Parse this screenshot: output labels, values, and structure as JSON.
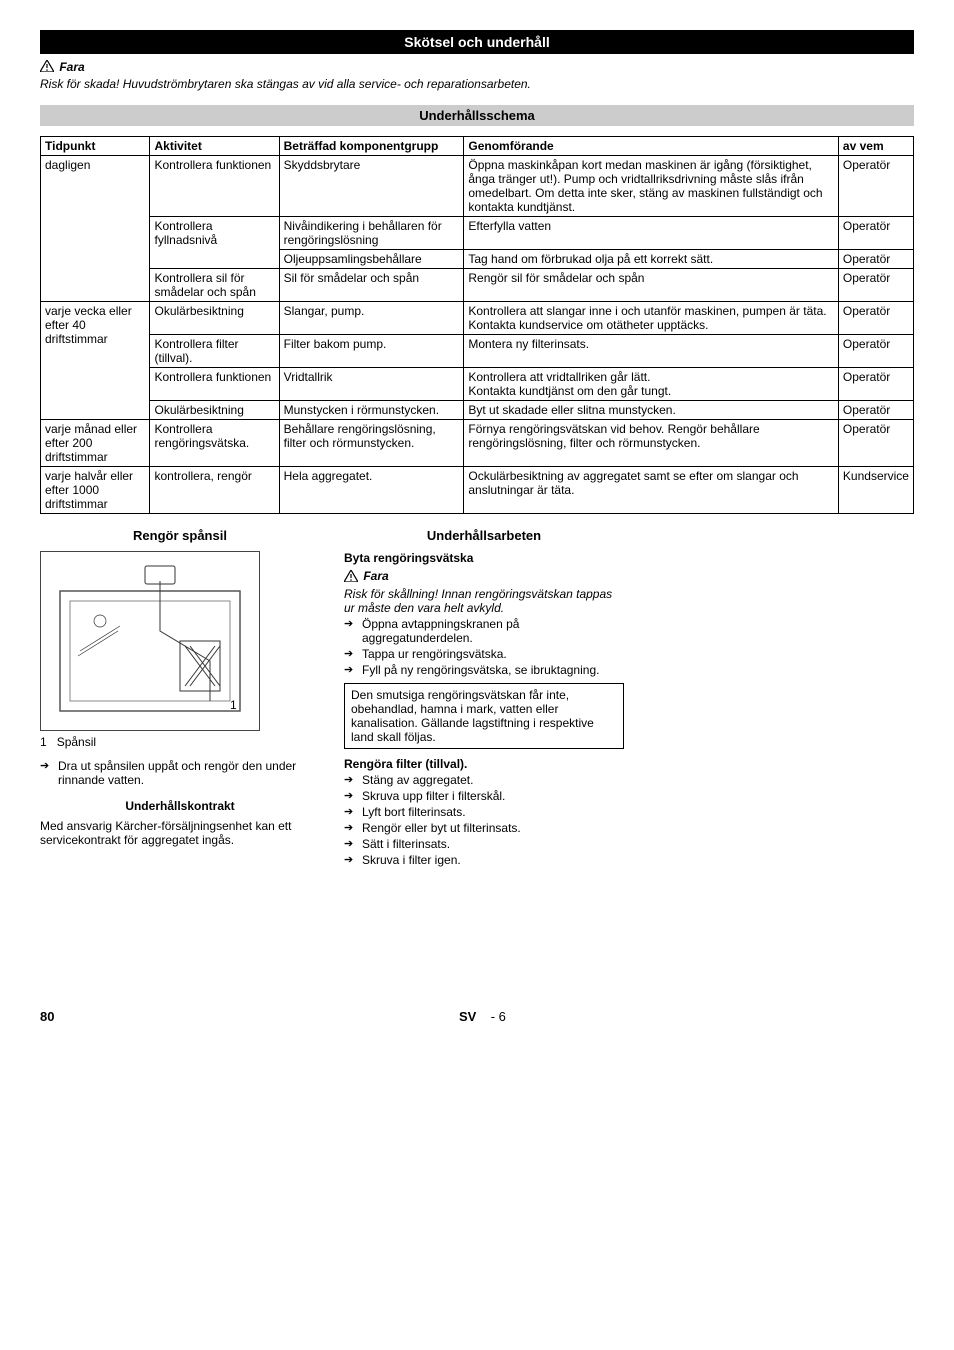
{
  "title_bar": "Skötsel och underhåll",
  "danger1": {
    "label": "Fara",
    "text": "Risk för skada! Huvudströmbrytaren ska stängas av vid alla service- och reparationsarbeten."
  },
  "schedule_header": "Underhållsschema",
  "table": {
    "headers": [
      "Tidpunkt",
      "Aktivitet",
      "Beträffad komponentgrupp",
      "Genomförande",
      "av vem"
    ],
    "rows": [
      {
        "t": "dagligen",
        "a": "Kontrollera funktionen",
        "c": "Skyddsbrytare",
        "g": "Öppna maskinkåpan kort medan maskinen är igång (försiktighet, ånga tränger ut!). Pump och vridtallriksdrivning måste slås ifrån omedelbart. Om detta inte sker, stäng av maskinen fullständigt och kontakta kundtjänst.",
        "w": "Operatör",
        "t_rs": 4,
        "a_rs": 1
      },
      {
        "t": "",
        "a": "Kontrollera fyllnadsnivå",
        "c": "Nivåindikering i behållaren för rengöringslösning",
        "g": "Efterfylla vatten",
        "w": "Operatör",
        "a_rs": 2
      },
      {
        "t": "",
        "a": "",
        "c": "Oljeuppsamlingsbehållare",
        "g": "Tag hand om förbrukad olja på ett korrekt sätt.",
        "w": "Operatör"
      },
      {
        "t": "",
        "a": "Kontrollera sil för smådelar och spån",
        "c": "Sil för smådelar och spån",
        "g": "Rengör sil för smådelar och spån",
        "w": "Operatör"
      },
      {
        "t": "varje vecka eller efter 40 driftstimmar",
        "a": "Okulärbesiktning",
        "c": "Slangar, pump.",
        "g": "Kontrollera att slangar inne i och utanför maskinen, pumpen är täta.\nKontakta kundservice om otätheter upptäcks.",
        "w": "Operatör",
        "t_rs": 4
      },
      {
        "t": "",
        "a": "Kontrollera filter (tillval).",
        "c": "Filter bakom pump.",
        "g": "Montera ny filterinsats.",
        "w": "Operatör"
      },
      {
        "t": "",
        "a": "Kontrollera funktionen",
        "c": "Vridtallrik",
        "g": "Kontrollera att vridtallriken går lätt.\nKontakta kundtjänst om den går tungt.",
        "w": "Operatör"
      },
      {
        "t": "",
        "a": "Okulärbesiktning",
        "c": "Munstycken i rörmunstycken.",
        "g": "Byt ut skadade eller slitna munstycken.",
        "w": "Operatör"
      },
      {
        "t": "varje månad eller efter 200 driftstimmar",
        "a": "Kontrollera rengöringsvätska.",
        "c": "Behållare rengöringslösning, filter och rörmunstycken.",
        "g": "Förnya rengöringsvätskan vid behov. Rengör behållare rengöringslösning, filter och rörmunstycken.",
        "w": "Operatör"
      },
      {
        "t": "varje halvår eller efter 1000 driftstimmar",
        "a": "kontrollera, rengör",
        "c": "Hela aggregatet.",
        "g": "Ockulärbesiktning av aggregatet samt se efter om slangar och anslutningar är täta.",
        "w": "Kundservice"
      }
    ]
  },
  "left_col": {
    "header": "Rengör spånsil",
    "caption_num": "1",
    "caption_text": "Spånsil",
    "bullets": [
      "Dra ut spånsilen uppåt och rengör den under rinnande vatten."
    ],
    "sub_header": "Underhållskontrakt",
    "para": "Med ansvarig Kärcher-försäljningsenhet kan ett servicekontrakt för aggregatet ingås."
  },
  "right_col": {
    "header": "Underhållsarbeten",
    "sec1_title": "Byta rengöringsvätska",
    "danger2": {
      "label": "Fara",
      "text": "Risk för skållning! Innan rengöringsvätskan tappas ur måste den vara helt avkyld."
    },
    "sec1_bullets": [
      "Öppna avtappningskranen på aggregatunderdelen.",
      "Tappa ur rengöringsvätska.",
      "Fyll på ny rengöringsvätska, se ibruktagning."
    ],
    "boxed_note": "Den smutsiga rengöringsvätskan får inte, obehandlad, hamna i mark, vatten eller kanalisation. Gällande lagstiftning i respektive land skall följas.",
    "sec2_title": "Rengöra filter (tillval).",
    "sec2_bullets": [
      "Stäng av aggregatet.",
      "Skruva upp filter i filterskål.",
      "Lyft bort filterinsats.",
      "Rengör eller byt ut filterinsats.",
      "Sätt i filterinsats.",
      "Skruva i filter igen."
    ]
  },
  "footer": {
    "page": "80",
    "lang": "SV",
    "sep": "- 6"
  },
  "colors": {
    "black": "#000000",
    "gray_header": "#cccccc",
    "white": "#ffffff"
  }
}
